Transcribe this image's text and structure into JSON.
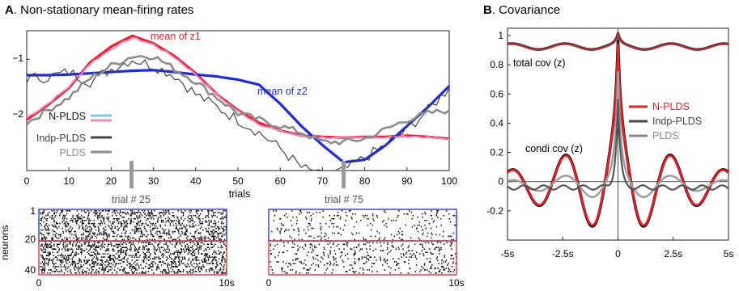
{
  "panel_a": {
    "letter": "A",
    "title": ". Non-stationary mean-firing rates",
    "xlabel": "trials",
    "xticks": [
      "0",
      "10",
      "20",
      "30",
      "40",
      "50",
      "60",
      "70",
      "80",
      "90",
      "100"
    ],
    "yticks": [
      "−1",
      "−2"
    ],
    "annotations": {
      "z1": "mean of z1",
      "z2": "mean of z2"
    },
    "legend": [
      "N-PLDS",
      "Indp-PLDS",
      "PLDS"
    ],
    "trial_markers": [
      "trial # 25",
      "trial # 75"
    ]
  },
  "rasters": {
    "ylabel": "neurons",
    "yticks": [
      "1",
      "20",
      "40"
    ],
    "xticks": [
      "0",
      "10s"
    ]
  },
  "panel_b": {
    "letter": "B",
    "title": ". Covariance",
    "xticks": [
      "-5s",
      "-2.5s",
      "0",
      "2.5s",
      "5s"
    ],
    "yticks": [
      "1",
      "0.8",
      "0.6",
      "0.4",
      "0.2",
      "0",
      "-0.2"
    ],
    "annotations": {
      "total": "total cov (z)",
      "condi": "condi cov (z)"
    },
    "legend": [
      "N-PLDS",
      "Indp-PLDS",
      "PLDS"
    ]
  },
  "colors": {
    "red": "#e8202a",
    "blue": "#1f2ad8",
    "lightblue": "#7fc8ee",
    "pink": "#e88ac8",
    "darkgray": "#444444",
    "gray": "#8c8c8c",
    "black": "#000000"
  },
  "chart_data": [
    {
      "type": "line",
      "title": "Non-stationary mean-firing rates",
      "xlabel": "trials",
      "ylabel": "",
      "xlim": [
        0,
        100
      ],
      "ylim": [
        -2.75,
        -0.55
      ],
      "x": [
        0,
        5,
        10,
        15,
        20,
        25,
        30,
        35,
        40,
        45,
        50,
        55,
        60,
        65,
        70,
        75,
        80,
        85,
        90,
        95,
        100
      ],
      "series": [
        {
          "name": "mean of z1",
          "values": [
            -1.95,
            -1.72,
            -1.45,
            -1.05,
            -0.8,
            -0.63,
            -0.75,
            -0.95,
            -1.22,
            -1.55,
            -1.8,
            -2.0,
            -2.12,
            -2.2,
            -2.22,
            -2.23,
            -2.22,
            -2.22,
            -2.2,
            -2.22,
            -2.25
          ]
        },
        {
          "name": "mean of z2",
          "values": [
            -1.25,
            -1.25,
            -1.24,
            -1.22,
            -1.2,
            -1.18,
            -1.17,
            -1.2,
            -1.24,
            -1.27,
            -1.32,
            -1.4,
            -1.7,
            -2.05,
            -2.35,
            -2.62,
            -2.58,
            -2.35,
            -2.05,
            -1.75,
            -1.42
          ]
        },
        {
          "name": "N-PLDS",
          "values": [
            -1.92,
            -1.7,
            -1.43,
            -1.07,
            -0.84,
            -0.66,
            -0.77,
            -0.97,
            -1.24,
            -1.56,
            -1.82,
            -2.02,
            -2.13,
            -2.21,
            -2.23,
            -2.24,
            -2.23,
            -2.23,
            -2.21,
            -2.23,
            -2.26
          ]
        },
        {
          "name": "Indp-PLDS",
          "values": [
            -1.3,
            -1.28,
            -1.2,
            -1.35,
            -1.15,
            -1.0,
            -1.1,
            -1.25,
            -1.55,
            -1.75,
            -1.95,
            -2.15,
            -2.4,
            -2.7,
            -2.85,
            -2.75,
            -2.55,
            -2.35,
            -2.1,
            -1.8,
            -1.45
          ]
        },
        {
          "name": "PLDS",
          "values": [
            -2.0,
            -1.8,
            -1.6,
            -1.3,
            -1.1,
            -0.95,
            -0.95,
            -1.15,
            -1.35,
            -1.6,
            -1.85,
            -1.95,
            -2.05,
            -2.15,
            -2.3,
            -2.3,
            -2.25,
            -2.1,
            -1.95,
            -1.85,
            -1.8
          ]
        }
      ]
    },
    {
      "type": "line",
      "title": "Covariance",
      "xlabel": "",
      "ylabel": "",
      "xlim": [
        -5,
        5
      ],
      "ylim": [
        -0.4,
        1.05
      ],
      "x": [
        -5,
        -4.5,
        -4,
        -3.5,
        -3,
        -2.5,
        -2,
        -1.5,
        -1,
        -0.5,
        0,
        0.5,
        1,
        1.5,
        2,
        2.5,
        3,
        3.5,
        4,
        4.5,
        5
      ],
      "series": [
        {
          "name": "total cov (z)",
          "values": [
            0.92,
            0.93,
            0.92,
            0.91,
            0.93,
            0.95,
            0.93,
            0.91,
            0.93,
            0.92,
            1.0,
            0.92,
            0.93,
            0.91,
            0.93,
            0.95,
            0.93,
            0.91,
            0.92,
            0.93,
            0.92
          ]
        },
        {
          "name": "N-PLDS",
          "values": [
            -0.02,
            -0.05,
            -0.15,
            0.05,
            0.25,
            0.3,
            0.1,
            -0.15,
            -0.3,
            0.15,
            0.97,
            0.15,
            -0.3,
            -0.15,
            0.1,
            0.3,
            0.25,
            0.05,
            -0.15,
            -0.05,
            -0.02
          ]
        },
        {
          "name": "Indp-PLDS",
          "values": [
            0.0,
            -0.02,
            -0.03,
            -0.05,
            -0.04,
            -0.05,
            -0.06,
            -0.07,
            -0.06,
            0.05,
            0.6,
            0.05,
            -0.06,
            -0.07,
            -0.06,
            -0.05,
            -0.04,
            -0.05,
            -0.03,
            -0.02,
            0.0
          ]
        },
        {
          "name": "PLDS",
          "values": [
            0.02,
            0.0,
            -0.05,
            0.0,
            0.05,
            0.1,
            0.05,
            -0.05,
            -0.08,
            0.1,
            0.75,
            0.1,
            -0.08,
            -0.05,
            0.05,
            0.1,
            0.05,
            0.0,
            -0.05,
            0.0,
            0.02
          ]
        }
      ]
    }
  ]
}
